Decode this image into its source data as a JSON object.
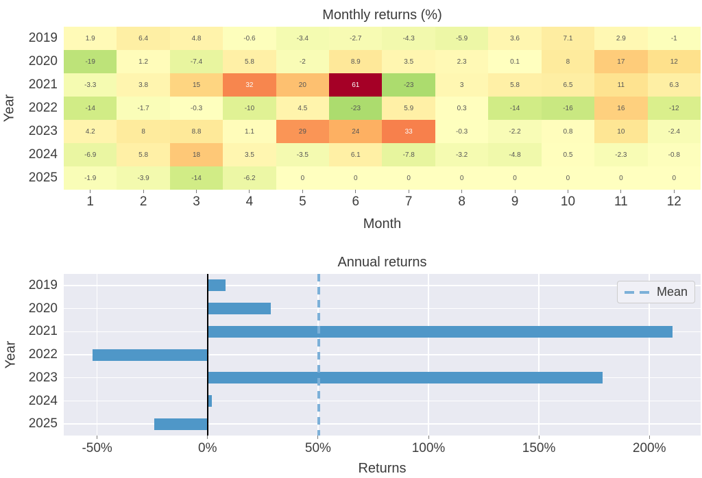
{
  "chart_data": [
    {
      "type": "heatmap",
      "title": "Monthly returns (%)",
      "xlabel": "Month",
      "ylabel": "Year",
      "rows": [
        "2019",
        "2020",
        "2021",
        "2022",
        "2023",
        "2024",
        "2025"
      ],
      "columns": [
        "1",
        "2",
        "3",
        "4",
        "5",
        "6",
        "7",
        "8",
        "9",
        "10",
        "11",
        "12"
      ],
      "values": [
        [
          1.9,
          6.4,
          4.8,
          -0.6,
          -3.4,
          -2.7,
          -4.3,
          -5.9,
          3.6,
          7.1,
          2.9,
          -1
        ],
        [
          -19,
          1.2,
          -7.4,
          5.8,
          -2,
          8.9,
          3.5,
          2.3,
          0.1,
          8,
          17,
          12
        ],
        [
          -3.3,
          3.8,
          15,
          32,
          20,
          61,
          -23,
          3,
          5.8,
          6.5,
          11,
          6.3
        ],
        [
          -14,
          -1.7,
          -0.3,
          -10,
          4.5,
          -23,
          5.9,
          0.3,
          -14,
          -16,
          16,
          -12
        ],
        [
          4.2,
          8,
          8.8,
          1.1,
          29,
          24,
          33,
          -0.3,
          -2.2,
          0.8,
          10,
          -2.4
        ],
        [
          -6.9,
          5.8,
          18,
          3.5,
          -3.5,
          6.1,
          -7.8,
          -3.2,
          -4.8,
          0.5,
          -2.3,
          -0.8
        ],
        [
          -1.9,
          -3.9,
          -14,
          -6.2,
          0,
          0,
          0,
          0,
          0,
          0,
          0,
          0
        ]
      ],
      "cell_labels": [
        [
          "1.9",
          "6.4",
          "4.8",
          "-0.6",
          "-3.4",
          "-2.7",
          "-4.3",
          "-5.9",
          "3.6",
          "7.1",
          "2.9",
          "-1"
        ],
        [
          "-19",
          "1.2",
          "-7.4",
          "5.8",
          "-2",
          "8.9",
          "3.5",
          "2.3",
          "0.1",
          "8",
          "17",
          "12"
        ],
        [
          "-3.3",
          "3.8",
          "15",
          "32",
          "20",
          "61",
          "-23",
          "3",
          "5.8",
          "6.5",
          "11",
          "6.3"
        ],
        [
          "-14",
          "-1.7",
          "-0.3",
          "-10",
          "4.5",
          "-23",
          "5.9",
          "0.3",
          "-14",
          "-16",
          "16",
          "-12"
        ],
        [
          "4.2",
          "8",
          "8.8",
          "1.1",
          "29",
          "24",
          "33",
          "-0.3",
          "-2.2",
          "0.8",
          "10",
          "-2.4"
        ],
        [
          "-6.9",
          "5.8",
          "18",
          "3.5",
          "-3.5",
          "6.1",
          "-7.8",
          "-3.2",
          "-4.8",
          "0.5",
          "-2.3",
          "-0.8"
        ],
        [
          "-1.9",
          "-3.9",
          "-14",
          "-6.2",
          "0",
          "0",
          "0",
          "0",
          "0",
          "0",
          "0",
          "0"
        ]
      ],
      "colormap": "RdYlGn_r",
      "color_domain": [
        -61,
        61
      ],
      "grid": false
    },
    {
      "type": "bar",
      "orientation": "horizontal",
      "title": "Annual returns",
      "xlabel": "Returns",
      "ylabel": "Year",
      "categories": [
        "2019",
        "2020",
        "2021",
        "2022",
        "2023",
        "2024",
        "2025"
      ],
      "values": [
        8.1,
        28.5,
        210.4,
        -52.2,
        178.9,
        1.9,
        -24.0
      ],
      "mean": 50.2,
      "xticks": [
        -50,
        0,
        50,
        100,
        150,
        200
      ],
      "xtick_labels": [
        "-50%",
        "0%",
        "50%",
        "100%",
        "150%",
        "200%"
      ],
      "xlim": [
        -65.1,
        223.2
      ],
      "legend": [
        "Mean"
      ],
      "legend_position": "upper right",
      "grid": true
    }
  ],
  "colors": {
    "bar": "#4f97c8",
    "mean_line": "#7cb0d8",
    "zero_line": "#000000",
    "plot_bg": "#e9eaf2",
    "grid_line": "#ffffff",
    "cell_text": "#555555",
    "cell_text_light": "#fafafa",
    "label_text": "#3a3a3a",
    "heatmap_max_color": "#a50026",
    "heatmap_min_color": "#006837",
    "heatmap_mid_color": "#ffffbf"
  }
}
